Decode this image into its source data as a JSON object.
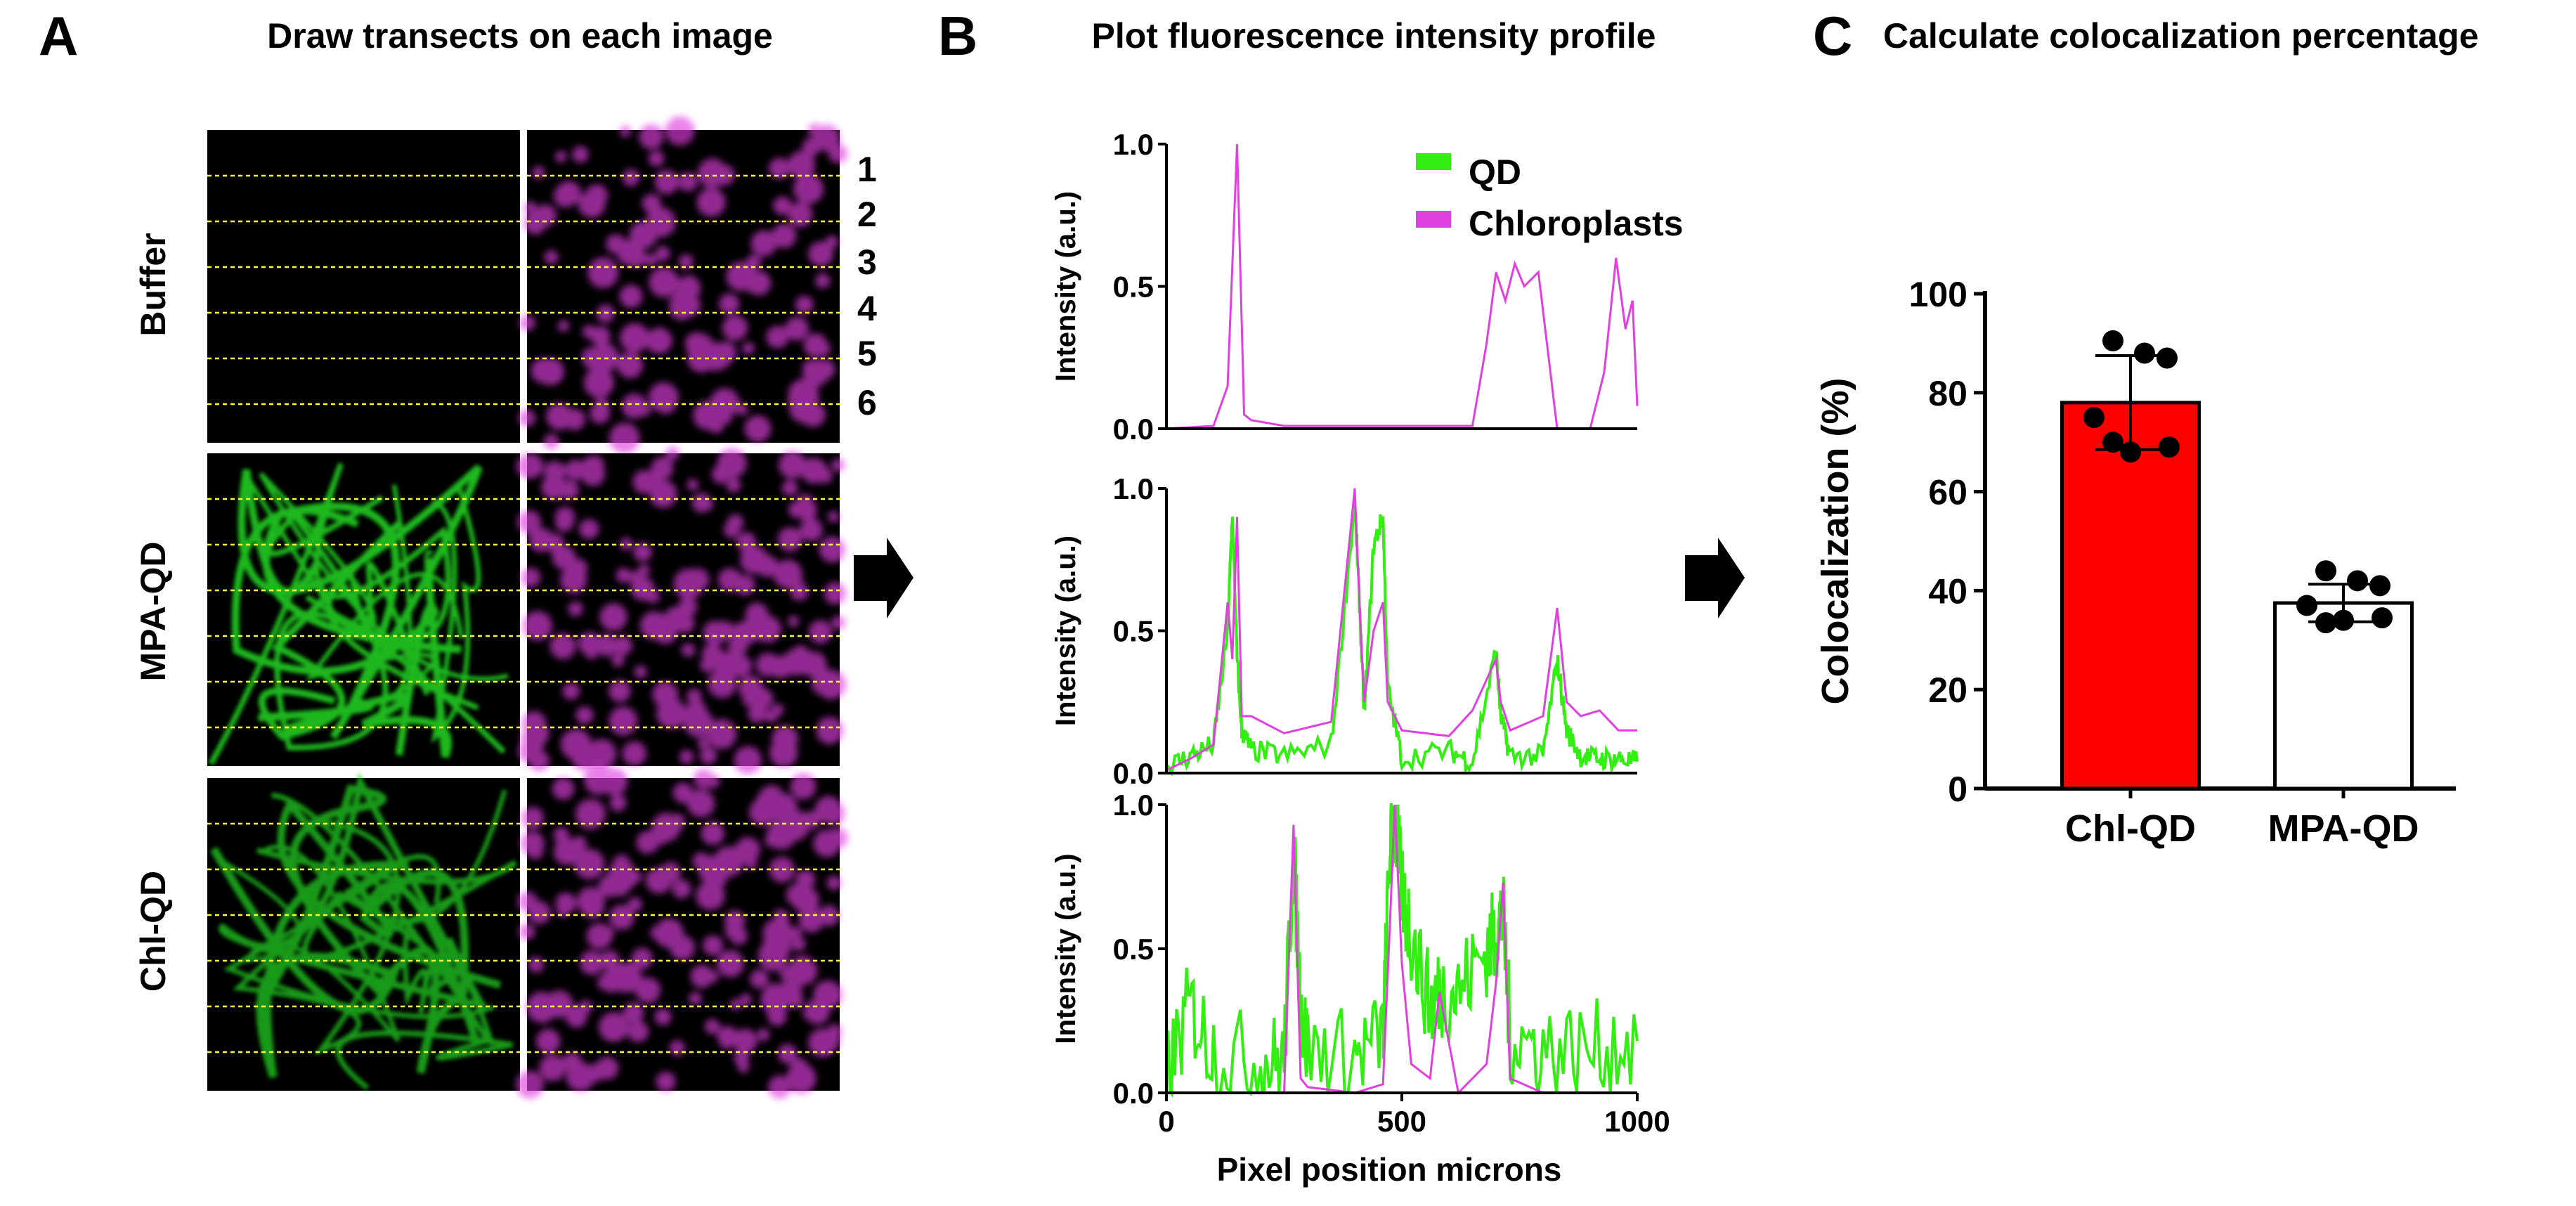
{
  "panel_a": {
    "letter": "A",
    "title": "Draw transects on each image",
    "row_labels": [
      "Buffer",
      "MPA-QD",
      "Chl-QD"
    ],
    "transect_numbers": [
      "1",
      "2",
      "3",
      "4",
      "5",
      "6"
    ],
    "colors": {
      "qd_channel": "#22cc22",
      "chloroplast_channel": "#e040e0",
      "transect": "#ffff33",
      "background": "#000000"
    }
  },
  "panel_b": {
    "letter": "B",
    "title": "Plot fluorescence intensity profile",
    "legend": [
      "QD",
      "Chloroplasts"
    ],
    "ylabel": "Intensity (a.u.)",
    "xlabel": "Pixel position microns",
    "xticks": [
      "0",
      "500",
      "1000"
    ],
    "yticks": [
      "0.0",
      "0.5",
      "1.0"
    ],
    "colors": {
      "qd": "#33ee11",
      "chloroplasts": "#e040e0"
    }
  },
  "panel_c": {
    "letter": "C",
    "title": "Calculate colocalization percentage",
    "ylabel": "Colocalization (%)",
    "yticks": [
      "0",
      "20",
      "40",
      "60",
      "80",
      "100"
    ],
    "colors": {
      "chl_qd_bar": "#ff0000",
      "mpa_qd_bar": "#ffffff"
    }
  },
  "chart_data": [
    {
      "type": "line",
      "x": [
        0,
        100,
        130,
        150,
        165,
        180,
        250,
        650,
        680,
        700,
        720,
        740,
        760,
        790,
        830,
        900,
        930,
        955,
        975,
        990,
        1000
      ],
      "ylim": [
        0,
        1
      ],
      "xlim": [
        0,
        1000
      ],
      "series": [
        {
          "name": "Chloroplasts",
          "values": [
            0.0,
            0.01,
            0.15,
            1.0,
            0.05,
            0.03,
            0.01,
            0.01,
            0.3,
            0.55,
            0.45,
            0.58,
            0.5,
            0.55,
            0.0,
            0.0,
            0.2,
            0.6,
            0.35,
            0.45,
            0.08
          ]
        }
      ]
    },
    {
      "type": "line",
      "x": [
        0,
        50,
        100,
        130,
        140,
        150,
        160,
        180,
        250,
        350,
        400,
        410,
        420,
        440,
        460,
        470,
        500,
        600,
        650,
        700,
        710,
        730,
        800,
        830,
        850,
        880,
        920,
        960,
        1000
      ],
      "ylim": [
        0,
        1
      ],
      "xlim": [
        0,
        1000
      ],
      "series": [
        {
          "name": "QD",
          "values": [
            0.02,
            0.06,
            0.1,
            0.5,
            0.92,
            0.4,
            0.15,
            0.08,
            0.06,
            0.1,
            0.95,
            0.6,
            0.2,
            0.8,
            0.9,
            0.3,
            0.05,
            0.08,
            0.04,
            0.43,
            0.2,
            0.06,
            0.06,
            0.4,
            0.15,
            0.06,
            0.05,
            0.05,
            0.04
          ]
        },
        {
          "name": "Chloroplasts",
          "values": [
            0.01,
            0.05,
            0.1,
            0.6,
            0.4,
            0.9,
            0.2,
            0.2,
            0.14,
            0.18,
            1.0,
            0.6,
            0.25,
            0.5,
            0.6,
            0.25,
            0.15,
            0.13,
            0.22,
            0.4,
            0.25,
            0.15,
            0.2,
            0.58,
            0.25,
            0.2,
            0.22,
            0.15,
            0.15
          ]
        }
      ]
    },
    {
      "type": "line",
      "x": [
        0,
        50,
        100,
        200,
        250,
        270,
        285,
        300,
        400,
        460,
        475,
        485,
        500,
        520,
        560,
        580,
        620,
        680,
        700,
        715,
        730,
        800,
        900,
        1000
      ],
      "ylim": [
        0,
        1
      ],
      "xlim": [
        0,
        1000
      ],
      "series": [
        {
          "name": "QD",
          "values": [
            0.05,
            0.3,
            0.15,
            0.1,
            0.12,
            0.85,
            0.3,
            0.15,
            0.12,
            0.2,
            0.85,
            0.95,
            0.7,
            0.55,
            0.3,
            0.35,
            0.35,
            0.5,
            0.55,
            0.62,
            0.2,
            0.15,
            0.15,
            0.18
          ]
        },
        {
          "name": "Chloroplasts",
          "values": [
            0.0,
            0.0,
            0.0,
            0.0,
            0.0,
            0.93,
            0.05,
            0.02,
            0.0,
            0.03,
            0.6,
            1.0,
            0.45,
            0.1,
            0.05,
            0.35,
            0.0,
            0.1,
            0.38,
            0.73,
            0.05,
            0.0,
            0.0,
            0.0
          ]
        }
      ]
    },
    {
      "type": "bar",
      "categories": [
        "Chl-QD",
        "MPA-QD"
      ],
      "values": [
        78,
        37.5
      ],
      "error": [
        9.5,
        3.8
      ],
      "points": [
        [
          90.5,
          88,
          87,
          75,
          70,
          68,
          69
        ],
        [
          44,
          42,
          41,
          37,
          33.5,
          34,
          34.5
        ]
      ],
      "ylabel": "Colocalization (%)",
      "ylim": [
        0,
        100
      ]
    }
  ]
}
